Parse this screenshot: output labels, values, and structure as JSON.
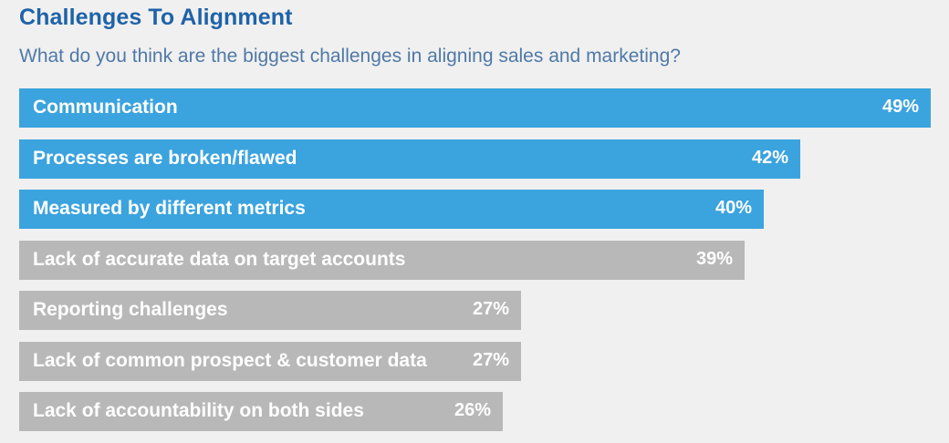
{
  "header": {
    "title": "Challenges To Alignment",
    "subtitle": "What do you think are the biggest challenges in aligning sales and marketing?"
  },
  "colors": {
    "highlight": "#3ba3de",
    "muted": "#b8b8b9",
    "title": "#1f63a8",
    "subtitle": "#4f79a8"
  },
  "chart_data": {
    "type": "bar",
    "orientation": "horizontal",
    "categories": [
      "Communication",
      "Processes are broken/flawed",
      "Measured by different metrics",
      "Lack of accurate data on target accounts",
      "Reporting challenges",
      "Lack of common prospect & customer data",
      "Lack of accountability on both sides"
    ],
    "values": [
      49,
      42,
      40,
      39,
      27,
      27,
      26
    ],
    "value_labels": [
      "49%",
      "42%",
      "40%",
      "39%",
      "27%",
      "27%",
      "26%"
    ],
    "highlighted": [
      true,
      true,
      true,
      false,
      false,
      false,
      false
    ],
    "unit": "%",
    "xlim": [
      0,
      49
    ],
    "title": "Challenges To Alignment",
    "grid": false
  }
}
